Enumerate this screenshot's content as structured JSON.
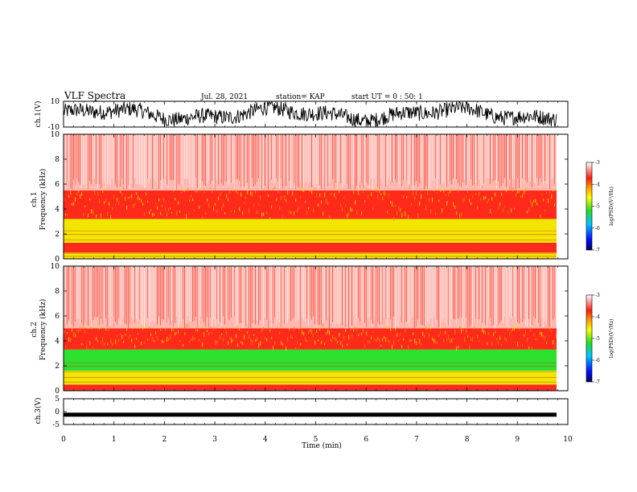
{
  "header": {
    "title": "VLF Spectra",
    "date": "Jul. 28, 2021",
    "station": "station= KAP",
    "start": "start  UT =   0 : 50: 1"
  },
  "colors": {
    "red": "#ff2a1a",
    "light_red": "#ffb8b0",
    "orange": "#ff8c00",
    "yellow": "#f2e600",
    "green": "#2ee02e",
    "waveform": "#000000"
  },
  "chart_data": [
    {
      "type": "line",
      "name": "ch1-waveform",
      "ylabel": "ch.1(V)",
      "ylim": [
        -10,
        10
      ],
      "ytick_labels": [
        "10",
        "-10"
      ],
      "xlim": [
        0,
        10
      ]
    },
    {
      "type": "heatmap",
      "name": "ch1-spectrogram",
      "ylabel_top": "ch.1",
      "ylabel": "Frequency  (kHz)",
      "ylim": [
        0,
        10
      ],
      "yticks": [
        0,
        2,
        4,
        6,
        8,
        10
      ],
      "ytick_labels": [
        "0",
        "2",
        "4",
        "6",
        "8",
        "10"
      ],
      "xlim": [
        0,
        10
      ],
      "bands": [
        {
          "from": 0,
          "to": 0.5,
          "level": "yellow"
        },
        {
          "from": 0.5,
          "to": 1.3,
          "level": "red"
        },
        {
          "from": 1.3,
          "to": 3.2,
          "level": "yellow"
        },
        {
          "from": 3.2,
          "to": 5.5,
          "level": "red"
        },
        {
          "from": 5.5,
          "to": 10,
          "level": "light_red"
        }
      ],
      "colorbar": {
        "range": [
          -7,
          -3
        ],
        "tick_labels": [
          "-3",
          "-4",
          "-5",
          "-6",
          "-7"
        ],
        "label": "log(PSD)(V²/Hz)"
      }
    },
    {
      "type": "heatmap",
      "name": "ch2-spectrogram",
      "ylabel_top": "ch.2",
      "ylabel": "Frequency  (kHz)",
      "ylim": [
        0,
        10
      ],
      "yticks": [
        0,
        2,
        4,
        6,
        8,
        10
      ],
      "ytick_labels": [
        "0",
        "2",
        "4",
        "6",
        "8",
        "10"
      ],
      "xlim": [
        0,
        10
      ],
      "bands": [
        {
          "from": 0,
          "to": 0.5,
          "level": "red"
        },
        {
          "from": 0.5,
          "to": 1.6,
          "level": "yellow"
        },
        {
          "from": 1.6,
          "to": 3.3,
          "level": "green"
        },
        {
          "from": 3.3,
          "to": 5.0,
          "level": "red"
        },
        {
          "from": 5.0,
          "to": 10,
          "level": "light_red"
        }
      ],
      "colorbar": {
        "range": [
          -7,
          -3
        ],
        "tick_labels": [
          "-3",
          "-4",
          "-5",
          "-6",
          "-7"
        ],
        "label": "log(PSD)(V²/Hz)"
      }
    },
    {
      "type": "line",
      "name": "ch3-waveform",
      "ylabel": "ch.3(V)",
      "ylim": [
        -5,
        5
      ],
      "ytick_labels": [
        "5",
        "0",
        "-5"
      ],
      "level": -1.2,
      "xlim": [
        0,
        10
      ]
    }
  ],
  "x_axis": {
    "label": "Time  (min)",
    "ticks": [
      0,
      1,
      2,
      3,
      4,
      5,
      6,
      7,
      8,
      9,
      10
    ],
    "tick_labels": [
      "0",
      "1",
      "2",
      "3",
      "4",
      "5",
      "6",
      "7",
      "8",
      "9",
      "10"
    ]
  }
}
